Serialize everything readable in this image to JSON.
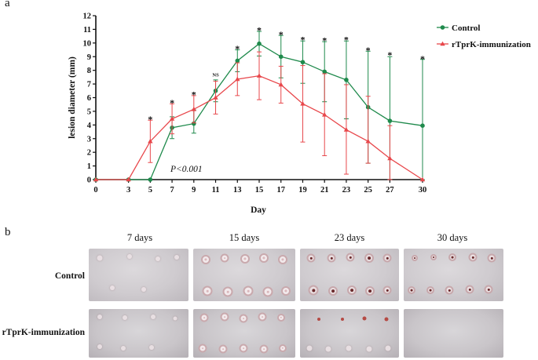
{
  "panel_a_label": "a",
  "panel_b_label": "b",
  "annotation_p": "P<0.001",
  "chart_data": {
    "type": "line",
    "title": "",
    "xlabel": "Day",
    "ylabel": "lesion diameter (mm)",
    "x": [
      0,
      3,
      5,
      7,
      9,
      11,
      13,
      15,
      17,
      19,
      21,
      23,
      25,
      27,
      30
    ],
    "x_tick_labels": [
      "0",
      "3",
      "5",
      "7",
      "9",
      "11",
      "13",
      "15",
      "17",
      "19",
      "21",
      "23",
      "25",
      "27",
      "30"
    ],
    "ylim": [
      0,
      12
    ],
    "y_ticks": [
      0,
      1,
      2,
      3,
      4,
      5,
      6,
      7,
      8,
      9,
      10,
      11,
      12
    ],
    "legend_position": "top-right",
    "series": [
      {
        "name": "Control",
        "color": "#1f8a4c",
        "marker": "circle",
        "values": [
          0,
          0,
          0,
          3.8,
          4.1,
          6.5,
          8.7,
          9.95,
          9.0,
          8.6,
          7.9,
          7.3,
          5.3,
          4.3,
          3.95
        ],
        "err_up": [
          0,
          0,
          0,
          0.8,
          1.0,
          0.8,
          0.8,
          0.9,
          1.55,
          1.55,
          2.2,
          2.85,
          4.1,
          4.7,
          4.85
        ],
        "err_down": [
          0,
          0,
          0,
          0.8,
          0.7,
          0.8,
          0.8,
          0.9,
          1.55,
          1.55,
          2.2,
          2.85,
          4.1,
          4.3,
          3.95
        ]
      },
      {
        "name": "rTprK-immunization",
        "color": "#e8474b",
        "marker": "triangle",
        "values": [
          0,
          0,
          2.8,
          4.45,
          5.15,
          6.0,
          7.35,
          7.6,
          6.95,
          5.55,
          4.75,
          3.65,
          2.8,
          1.55,
          0
        ],
        "err_up": [
          0,
          0,
          1.55,
          1.1,
          1.0,
          1.2,
          1.2,
          1.75,
          1.35,
          2.8,
          3.0,
          3.3,
          3.3,
          2.4,
          0
        ],
        "err_down": [
          0,
          0,
          1.55,
          1.1,
          1.0,
          1.2,
          1.2,
          1.75,
          1.35,
          2.8,
          3.0,
          3.25,
          1.6,
          1.55,
          0
        ]
      }
    ],
    "significance_marks": [
      {
        "x": 5,
        "label": "*",
        "y": 4.55
      },
      {
        "x": 7,
        "label": "*",
        "y": 5.75
      },
      {
        "x": 9,
        "label": "*",
        "y": 6.35
      },
      {
        "x": 11,
        "label": "NS",
        "y": 7.55
      },
      {
        "x": 13,
        "label": "*",
        "y": 9.7
      },
      {
        "x": 15,
        "label": "*",
        "y": 11.05
      },
      {
        "x": 17,
        "label": "*",
        "y": 10.75
      },
      {
        "x": 19,
        "label": "*",
        "y": 10.35
      },
      {
        "x": 21,
        "label": "*",
        "y": 10.3
      },
      {
        "x": 23,
        "label": "*",
        "y": 10.35
      },
      {
        "x": 25,
        "label": "*",
        "y": 9.6
      },
      {
        "x": 27,
        "label": "*",
        "y": 9.25
      },
      {
        "x": 30,
        "label": "*",
        "y": 8.95
      }
    ]
  },
  "photos": {
    "columns": [
      "7 days",
      "15 days",
      "23 days",
      "30 days"
    ],
    "rows": [
      "Control",
      "rTprK-immunization"
    ]
  }
}
